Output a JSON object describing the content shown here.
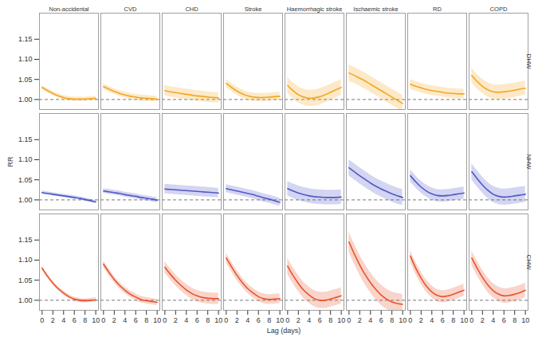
{
  "chart_data": {
    "type": "line",
    "xlabel": "Lag (days)",
    "ylabel": "RR",
    "x": [
      0,
      1,
      2,
      3,
      4,
      5,
      6,
      7,
      8,
      9,
      10
    ],
    "xlim": [
      -0.5,
      10.5
    ],
    "xticks": [
      0,
      2,
      4,
      6,
      8,
      10
    ],
    "ylim": [
      0.975,
      1.215
    ],
    "yticks": [
      {
        "value": 1,
        "label": "1.00"
      },
      1.05,
      {
        "value": 1.1,
        "label": "1.10"
      },
      1.15
    ],
    "reference_line": 1,
    "columns": [
      "Non-accidental",
      "CVD",
      "CHD",
      "Stroke",
      "Haemorrhagic stroke",
      "Ischaemic stroke",
      "RD",
      "COPD"
    ],
    "rows": [
      {
        "name": "DHW",
        "color": "#f5a623"
      },
      {
        "name": "NHW",
        "color": "#5058c8"
      },
      {
        "name": "CHW",
        "color": "#e8532d"
      }
    ],
    "panels": [
      {
        "row": "DHW",
        "column": "Non-accidental",
        "values": [
          1.03,
          1.022,
          1.015,
          1.009,
          1.005,
          1.002,
          1.001,
          1.001,
          1.001,
          1.002,
          1.003
        ],
        "lower": [
          1.025,
          1.017,
          1.01,
          1.004,
          1.0,
          0.997,
          0.996,
          0.996,
          0.996,
          0.997,
          0.998
        ],
        "upper": [
          1.035,
          1.027,
          1.02,
          1.014,
          1.01,
          1.007,
          1.006,
          1.006,
          1.006,
          1.007,
          1.008
        ]
      },
      {
        "row": "DHW",
        "column": "CVD",
        "values": [
          1.032,
          1.026,
          1.02,
          1.015,
          1.011,
          1.008,
          1.006,
          1.004,
          1.003,
          1.002,
          1.001
        ],
        "lower": [
          1.025,
          1.019,
          1.013,
          1.008,
          1.004,
          1.001,
          0.999,
          0.997,
          0.996,
          0.995,
          0.994
        ],
        "upper": [
          1.039,
          1.033,
          1.027,
          1.022,
          1.018,
          1.015,
          1.013,
          1.011,
          1.01,
          1.009,
          1.008
        ]
      },
      {
        "row": "DHW",
        "column": "CHD",
        "values": [
          1.022,
          1.019,
          1.017,
          1.015,
          1.013,
          1.011,
          1.009,
          1.008,
          1.006,
          1.005,
          1.004
        ],
        "lower": [
          1.009,
          1.006,
          1.004,
          1.002,
          1.0,
          0.998,
          0.996,
          0.995,
          0.993,
          0.992,
          0.991
        ],
        "upper": [
          1.035,
          1.032,
          1.03,
          1.028,
          1.026,
          1.024,
          1.022,
          1.021,
          1.019,
          1.018,
          1.017
        ]
      },
      {
        "row": "DHW",
        "column": "Stroke",
        "values": [
          1.04,
          1.03,
          1.021,
          1.014,
          1.009,
          1.006,
          1.005,
          1.005,
          1.006,
          1.007,
          1.008
        ],
        "lower": [
          1.03,
          1.02,
          1.011,
          1.004,
          0.999,
          0.996,
          0.995,
          0.995,
          0.996,
          0.997,
          0.998
        ],
        "upper": [
          1.05,
          1.04,
          1.031,
          1.024,
          1.019,
          1.016,
          1.015,
          1.015,
          1.016,
          1.017,
          1.018
        ]
      },
      {
        "row": "DHW",
        "column": "Haemorrhagic stroke",
        "values": [
          1.035,
          1.022,
          1.012,
          1.006,
          1.003,
          1.004,
          1.007,
          1.012,
          1.018,
          1.024,
          1.03
        ],
        "lower": [
          1.015,
          1.002,
          0.992,
          0.986,
          0.983,
          0.984,
          0.987,
          0.992,
          0.998,
          1.004,
          1.01
        ],
        "upper": [
          1.055,
          1.042,
          1.032,
          1.026,
          1.023,
          1.024,
          1.027,
          1.032,
          1.038,
          1.044,
          1.05
        ]
      },
      {
        "row": "DHW",
        "column": "Ischaemic stroke",
        "values": [
          1.066,
          1.06,
          1.053,
          1.046,
          1.038,
          1.03,
          1.022,
          1.014,
          1.006,
          0.998,
          0.99
        ],
        "lower": [
          1.046,
          1.04,
          1.033,
          1.026,
          1.018,
          1.01,
          1.002,
          0.994,
          0.986,
          0.978,
          0.97
        ],
        "upper": [
          1.086,
          1.08,
          1.073,
          1.066,
          1.058,
          1.05,
          1.042,
          1.034,
          1.026,
          1.018,
          1.01
        ]
      },
      {
        "row": "DHW",
        "column": "RD",
        "values": [
          1.038,
          1.033,
          1.029,
          1.025,
          1.022,
          1.02,
          1.018,
          1.016,
          1.015,
          1.014,
          1.014
        ],
        "lower": [
          1.026,
          1.021,
          1.017,
          1.013,
          1.01,
          1.008,
          1.006,
          1.004,
          1.003,
          1.002,
          1.002
        ],
        "upper": [
          1.05,
          1.045,
          1.041,
          1.037,
          1.034,
          1.032,
          1.03,
          1.028,
          1.027,
          1.026,
          1.026
        ]
      },
      {
        "row": "DHW",
        "column": "COPD",
        "values": [
          1.06,
          1.045,
          1.033,
          1.024,
          1.019,
          1.018,
          1.019,
          1.021,
          1.023,
          1.026,
          1.028
        ],
        "lower": [
          1.042,
          1.027,
          1.015,
          1.006,
          1.001,
          1.0,
          1.001,
          1.003,
          1.005,
          1.008,
          1.01
        ],
        "upper": [
          1.078,
          1.063,
          1.051,
          1.042,
          1.037,
          1.036,
          1.037,
          1.039,
          1.041,
          1.044,
          1.046
        ]
      },
      {
        "row": "NHW",
        "column": "Non-accidental",
        "values": [
          1.018,
          1.016,
          1.014,
          1.012,
          1.01,
          1.008,
          1.006,
          1.004,
          1.001,
          0.998,
          0.995
        ],
        "lower": [
          1.014,
          1.012,
          1.01,
          1.008,
          1.006,
          1.004,
          1.002,
          1.0,
          0.997,
          0.994,
          0.991
        ],
        "upper": [
          1.022,
          1.02,
          1.018,
          1.016,
          1.014,
          1.012,
          1.01,
          1.008,
          1.005,
          1.002,
          0.999
        ]
      },
      {
        "row": "NHW",
        "column": "CVD",
        "values": [
          1.022,
          1.02,
          1.018,
          1.016,
          1.013,
          1.011,
          1.009,
          1.006,
          1.004,
          1.002,
          0.999
        ],
        "lower": [
          1.016,
          1.014,
          1.012,
          1.01,
          1.007,
          1.005,
          1.003,
          1.0,
          0.998,
          0.996,
          0.993
        ],
        "upper": [
          1.028,
          1.026,
          1.024,
          1.022,
          1.019,
          1.017,
          1.015,
          1.012,
          1.01,
          1.008,
          1.005
        ]
      },
      {
        "row": "NHW",
        "column": "CHD",
        "values": [
          1.027,
          1.026,
          1.025,
          1.024,
          1.023,
          1.022,
          1.021,
          1.02,
          1.019,
          1.018,
          1.017
        ],
        "lower": [
          1.015,
          1.014,
          1.013,
          1.012,
          1.011,
          1.01,
          1.009,
          1.008,
          1.007,
          1.006,
          1.005
        ],
        "upper": [
          1.039,
          1.038,
          1.037,
          1.036,
          1.035,
          1.034,
          1.033,
          1.032,
          1.031,
          1.03,
          1.029
        ]
      },
      {
        "row": "NHW",
        "column": "Stroke",
        "values": [
          1.028,
          1.025,
          1.022,
          1.019,
          1.016,
          1.013,
          1.009,
          1.005,
          1.002,
          0.998,
          0.994
        ],
        "lower": [
          1.018,
          1.015,
          1.012,
          1.009,
          1.006,
          1.003,
          0.999,
          0.995,
          0.992,
          0.988,
          0.984
        ],
        "upper": [
          1.038,
          1.035,
          1.032,
          1.029,
          1.026,
          1.023,
          1.019,
          1.015,
          1.012,
          1.008,
          1.004
        ]
      },
      {
        "row": "NHW",
        "column": "Haemorrhagic stroke",
        "values": [
          1.028,
          1.022,
          1.017,
          1.013,
          1.01,
          1.008,
          1.007,
          1.006,
          1.006,
          1.006,
          1.007
        ],
        "lower": [
          1.01,
          1.004,
          0.999,
          0.995,
          0.992,
          0.99,
          0.989,
          0.988,
          0.988,
          0.988,
          0.989
        ],
        "upper": [
          1.046,
          1.04,
          1.035,
          1.031,
          1.028,
          1.026,
          1.025,
          1.024,
          1.024,
          1.024,
          1.025
        ]
      },
      {
        "row": "NHW",
        "column": "Ischaemic stroke",
        "values": [
          1.08,
          1.07,
          1.06,
          1.051,
          1.042,
          1.034,
          1.027,
          1.021,
          1.015,
          1.01,
          1.006
        ],
        "lower": [
          1.06,
          1.05,
          1.04,
          1.031,
          1.022,
          1.014,
          1.007,
          1.001,
          0.995,
          0.99,
          0.986
        ],
        "upper": [
          1.1,
          1.09,
          1.08,
          1.071,
          1.062,
          1.054,
          1.047,
          1.041,
          1.035,
          1.03,
          1.026
        ]
      },
      {
        "row": "NHW",
        "column": "RD",
        "values": [
          1.06,
          1.045,
          1.032,
          1.022,
          1.015,
          1.011,
          1.01,
          1.011,
          1.013,
          1.015,
          1.017
        ],
        "lower": [
          1.045,
          1.03,
          1.017,
          1.007,
          1.0,
          0.996,
          0.995,
          0.996,
          0.998,
          1.0,
          1.002
        ],
        "upper": [
          1.075,
          1.06,
          1.047,
          1.037,
          1.03,
          1.026,
          1.025,
          1.026,
          1.028,
          1.03,
          1.032
        ]
      },
      {
        "row": "NHW",
        "column": "COPD",
        "values": [
          1.07,
          1.053,
          1.037,
          1.024,
          1.014,
          1.009,
          1.007,
          1.008,
          1.01,
          1.012,
          1.014
        ],
        "lower": [
          1.05,
          1.033,
          1.017,
          1.004,
          0.994,
          0.989,
          0.987,
          0.988,
          0.99,
          0.992,
          0.994
        ],
        "upper": [
          1.09,
          1.073,
          1.057,
          1.044,
          1.034,
          1.029,
          1.027,
          1.028,
          1.03,
          1.032,
          1.034
        ]
      },
      {
        "row": "CHW",
        "column": "Non-accidental",
        "values": [
          1.08,
          1.06,
          1.043,
          1.029,
          1.018,
          1.009,
          1.003,
          1.0,
          0.999,
          1.0,
          1.001
        ],
        "lower": [
          1.075,
          1.055,
          1.038,
          1.024,
          1.013,
          1.004,
          0.998,
          0.995,
          0.994,
          0.995,
          0.996
        ],
        "upper": [
          1.085,
          1.065,
          1.048,
          1.034,
          1.023,
          1.014,
          1.008,
          1.005,
          1.004,
          1.005,
          1.006
        ]
      },
      {
        "row": "CHW",
        "column": "CVD",
        "values": [
          1.09,
          1.07,
          1.052,
          1.037,
          1.025,
          1.015,
          1.008,
          1.002,
          0.999,
          0.997,
          0.995
        ],
        "lower": [
          1.082,
          1.062,
          1.044,
          1.029,
          1.017,
          1.007,
          1.0,
          0.994,
          0.991,
          0.989,
          0.987
        ],
        "upper": [
          1.098,
          1.078,
          1.06,
          1.045,
          1.033,
          1.023,
          1.016,
          1.01,
          1.007,
          1.005,
          1.003
        ]
      },
      {
        "row": "CHW",
        "column": "CHD",
        "values": [
          1.082,
          1.065,
          1.05,
          1.037,
          1.026,
          1.017,
          1.011,
          1.007,
          1.005,
          1.004,
          1.004
        ],
        "lower": [
          1.068,
          1.051,
          1.036,
          1.023,
          1.012,
          1.003,
          0.997,
          0.993,
          0.991,
          0.99,
          0.99
        ],
        "upper": [
          1.096,
          1.079,
          1.064,
          1.051,
          1.04,
          1.031,
          1.025,
          1.021,
          1.019,
          1.018,
          1.018
        ]
      },
      {
        "row": "CHW",
        "column": "Stroke",
        "values": [
          1.105,
          1.083,
          1.062,
          1.044,
          1.029,
          1.018,
          1.009,
          1.004,
          1.002,
          1.003,
          1.004
        ],
        "lower": [
          1.093,
          1.071,
          1.05,
          1.032,
          1.017,
          1.006,
          0.997,
          0.992,
          0.99,
          0.991,
          0.992
        ],
        "upper": [
          1.117,
          1.095,
          1.074,
          1.056,
          1.041,
          1.03,
          1.021,
          1.016,
          1.014,
          1.015,
          1.016
        ]
      },
      {
        "row": "CHW",
        "column": "Haemorrhagic stroke",
        "values": [
          1.085,
          1.062,
          1.042,
          1.025,
          1.013,
          1.004,
          1.0,
          1.0,
          1.003,
          1.007,
          1.011
        ],
        "lower": [
          1.065,
          1.042,
          1.022,
          1.005,
          0.993,
          0.984,
          0.98,
          0.98,
          0.983,
          0.987,
          0.991
        ],
        "upper": [
          1.105,
          1.082,
          1.062,
          1.045,
          1.033,
          1.024,
          1.02,
          1.02,
          1.023,
          1.027,
          1.031
        ]
      },
      {
        "row": "CHW",
        "column": "Ischaemic stroke",
        "values": [
          1.145,
          1.115,
          1.088,
          1.064,
          1.044,
          1.027,
          1.013,
          1.003,
          0.996,
          0.992,
          0.99
        ],
        "lower": [
          1.12,
          1.09,
          1.063,
          1.039,
          1.019,
          1.002,
          0.988,
          0.978,
          0.971,
          0.967,
          0.965
        ],
        "upper": [
          1.17,
          1.14,
          1.113,
          1.089,
          1.069,
          1.052,
          1.038,
          1.028,
          1.021,
          1.017,
          1.015
        ]
      },
      {
        "row": "CHW",
        "column": "RD",
        "values": [
          1.11,
          1.08,
          1.055,
          1.035,
          1.021,
          1.012,
          1.009,
          1.011,
          1.015,
          1.02,
          1.025
        ],
        "lower": [
          1.095,
          1.065,
          1.04,
          1.02,
          1.006,
          0.997,
          0.994,
          0.996,
          1.0,
          1.005,
          1.01
        ],
        "upper": [
          1.125,
          1.095,
          1.07,
          1.05,
          1.036,
          1.027,
          1.024,
          1.026,
          1.03,
          1.035,
          1.04
        ]
      },
      {
        "row": "CHW",
        "column": "COPD",
        "values": [
          1.105,
          1.08,
          1.057,
          1.038,
          1.024,
          1.015,
          1.011,
          1.012,
          1.015,
          1.019,
          1.025
        ],
        "lower": [
          1.087,
          1.062,
          1.039,
          1.02,
          1.006,
          0.997,
          0.993,
          0.994,
          0.997,
          1.001,
          1.007
        ],
        "upper": [
          1.123,
          1.098,
          1.075,
          1.056,
          1.042,
          1.033,
          1.029,
          1.03,
          1.033,
          1.037,
          1.043
        ]
      }
    ]
  }
}
